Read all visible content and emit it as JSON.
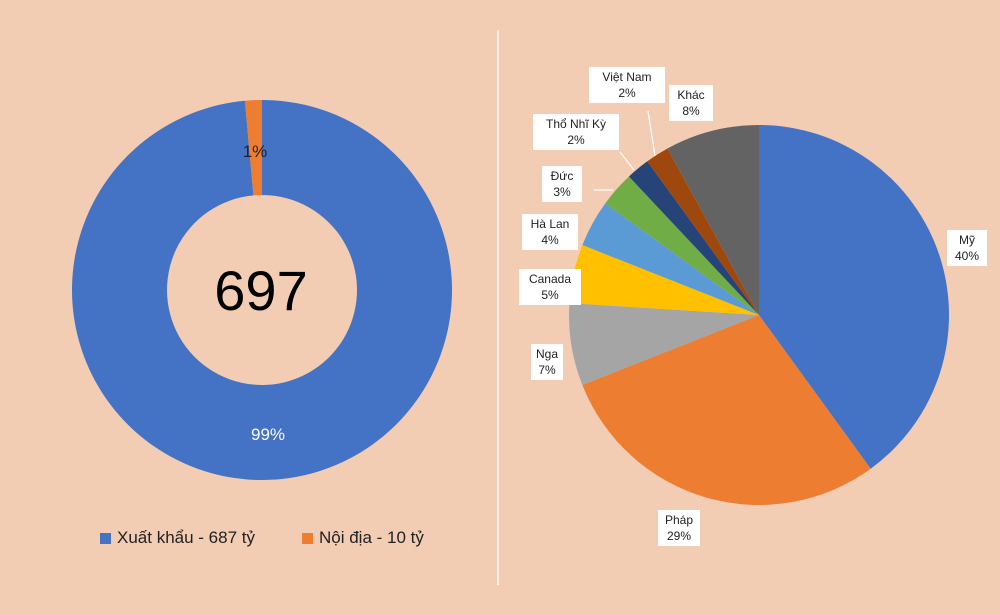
{
  "background": "#f2ccb3",
  "chart_data": [
    {
      "type": "pie",
      "subtype": "donut",
      "center_label": "697",
      "categories": [
        "Xuất khẩu - 687 tỷ",
        "Nội địa - 10 tỷ"
      ],
      "values": [
        687,
        10
      ],
      "percent_labels": [
        "99%",
        "1%"
      ],
      "colors": [
        "#4472c4",
        "#ed7d31"
      ],
      "legend_position": "bottom"
    },
    {
      "type": "pie",
      "categories": [
        "Mỹ",
        "Pháp",
        "Nga",
        "Canada",
        "Hà Lan",
        "Đức",
        "Thổ Nhĩ Kỳ",
        "Việt Nam",
        "Khác"
      ],
      "values": [
        40,
        29,
        7,
        5,
        4,
        3,
        2,
        2,
        8
      ],
      "percent_labels": [
        "40%",
        "29%",
        "7%",
        "5%",
        "4%",
        "3%",
        "2%",
        "2%",
        "8%"
      ],
      "colors": [
        "#4472c4",
        "#ed7d31",
        "#a5a5a5",
        "#ffc000",
        "#5b9bd5",
        "#70ad47",
        "#264478",
        "#9e480e",
        "#636363"
      ]
    }
  ]
}
